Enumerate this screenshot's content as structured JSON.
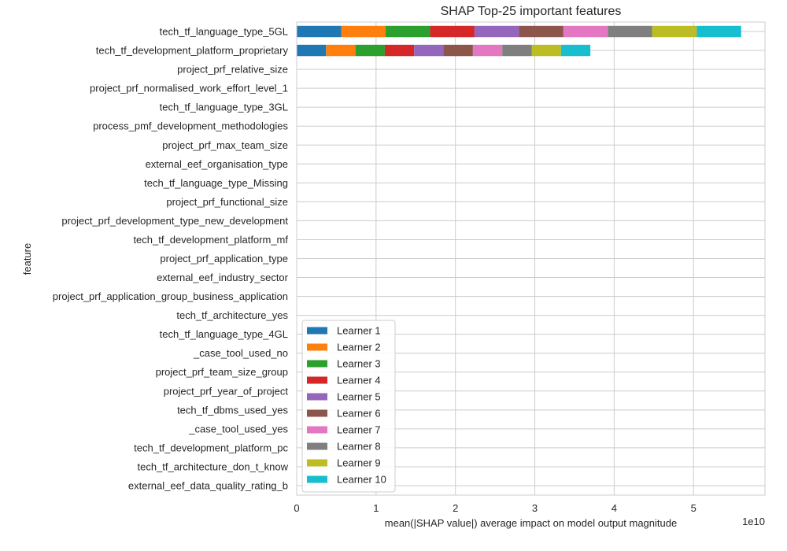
{
  "chart_data": {
    "type": "bar",
    "orientation": "horizontal",
    "stacked": true,
    "title": "SHAP Top-25 important features",
    "xlabel": "mean(|SHAP value|) average impact on model output magnitude",
    "ylabel": "feature",
    "x_offset_text": "1e10",
    "xlim": [
      0,
      5.9
    ],
    "x_ticks": [
      0,
      1,
      2,
      3,
      4,
      5
    ],
    "x_tick_labels": [
      "0",
      "1",
      "2",
      "3",
      "4",
      "5"
    ],
    "grid": true,
    "legend_placement": "lower-left",
    "categories": [
      "tech_tf_language_type_5GL",
      "tech_tf_development_platform_proprietary",
      "project_prf_relative_size",
      "project_prf_normalised_work_effort_level_1",
      "tech_tf_language_type_3GL",
      "process_pmf_development_methodologies",
      "project_prf_max_team_size",
      "external_eef_organisation_type",
      "tech_tf_language_type_Missing",
      "project_prf_functional_size",
      "project_prf_development_type_new_development",
      "tech_tf_development_platform_mf",
      "project_prf_application_type",
      "external_eef_industry_sector",
      "project_prf_application_group_business_application",
      "tech_tf_architecture_yes",
      "tech_tf_language_type_4GL",
      "_case_tool_used_no",
      "project_prf_team_size_group",
      "project_prf_year_of_project",
      "tech_tf_dbms_used_yes",
      "_case_tool_used_yes",
      "tech_tf_development_platform_pc",
      "tech_tf_architecture_don_t_know",
      "external_eef_data_quality_rating_b"
    ],
    "series": [
      {
        "name": "Learner 1",
        "color": "#1f77b4",
        "values": [
          0.56,
          0.37,
          0,
          0,
          0,
          0,
          0,
          0,
          0,
          0,
          0,
          0,
          0,
          0,
          0,
          0,
          0,
          0,
          0,
          0,
          0,
          0,
          0,
          0,
          0
        ]
      },
      {
        "name": "Learner 2",
        "color": "#ff7f0e",
        "values": [
          0.56,
          0.37,
          0,
          0,
          0,
          0,
          0,
          0,
          0,
          0,
          0,
          0,
          0,
          0,
          0,
          0,
          0,
          0,
          0,
          0,
          0,
          0,
          0,
          0,
          0
        ]
      },
      {
        "name": "Learner 3",
        "color": "#2ca02c",
        "values": [
          0.56,
          0.37,
          0,
          0,
          0,
          0,
          0,
          0,
          0,
          0,
          0,
          0,
          0,
          0,
          0,
          0,
          0,
          0,
          0,
          0,
          0,
          0,
          0,
          0,
          0
        ]
      },
      {
        "name": "Learner 4",
        "color": "#d62728",
        "values": [
          0.56,
          0.37,
          0,
          0,
          0,
          0,
          0,
          0,
          0,
          0,
          0,
          0,
          0,
          0,
          0,
          0,
          0,
          0,
          0,
          0,
          0,
          0,
          0,
          0,
          0
        ]
      },
      {
        "name": "Learner 5",
        "color": "#9467bd",
        "values": [
          0.56,
          0.37,
          0,
          0,
          0,
          0,
          0,
          0,
          0,
          0,
          0,
          0,
          0,
          0,
          0,
          0,
          0,
          0,
          0,
          0,
          0,
          0,
          0,
          0,
          0
        ]
      },
      {
        "name": "Learner 6",
        "color": "#8c564b",
        "values": [
          0.56,
          0.37,
          0,
          0,
          0,
          0,
          0,
          0,
          0,
          0,
          0,
          0,
          0,
          0,
          0,
          0,
          0,
          0,
          0,
          0,
          0,
          0,
          0,
          0,
          0
        ]
      },
      {
        "name": "Learner 7",
        "color": "#e377c2",
        "values": [
          0.56,
          0.37,
          0,
          0,
          0,
          0,
          0,
          0,
          0,
          0,
          0,
          0,
          0,
          0,
          0,
          0,
          0,
          0,
          0,
          0,
          0,
          0,
          0,
          0,
          0
        ]
      },
      {
        "name": "Learner 8",
        "color": "#7f7f7f",
        "values": [
          0.56,
          0.37,
          0,
          0,
          0,
          0,
          0,
          0,
          0,
          0,
          0,
          0,
          0,
          0,
          0,
          0,
          0,
          0,
          0,
          0,
          0,
          0,
          0,
          0,
          0
        ]
      },
      {
        "name": "Learner 9",
        "color": "#bcbd22",
        "values": [
          0.56,
          0.37,
          0,
          0,
          0,
          0,
          0,
          0,
          0,
          0,
          0,
          0,
          0,
          0,
          0,
          0,
          0,
          0,
          0,
          0,
          0,
          0,
          0,
          0,
          0
        ]
      },
      {
        "name": "Learner 10",
        "color": "#17becf",
        "values": [
          0.56,
          0.37,
          0,
          0,
          0,
          0,
          0,
          0,
          0,
          0,
          0,
          0,
          0,
          0,
          0,
          0,
          0,
          0,
          0,
          0,
          0,
          0,
          0,
          0,
          0
        ]
      }
    ]
  }
}
